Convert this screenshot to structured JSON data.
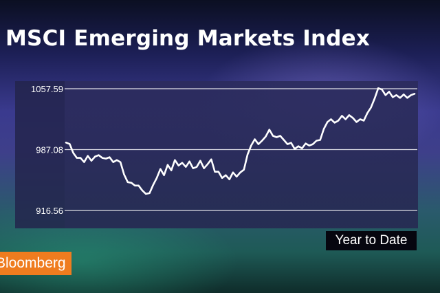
{
  "title": "MSCI Emerging Markets Index",
  "period_label": "Year to Date",
  "brand": "Bloomberg",
  "colors": {
    "line": "#ffffff",
    "gridline": "#ffffff",
    "chart_bg": "#2b2b59",
    "brand": "#ef7c1f"
  },
  "chart_data": {
    "type": "line",
    "title": "MSCI Emerging Markets Index",
    "xlabel": "Year to Date",
    "ylabel": "",
    "ylim": [
      916.56,
      1057.59
    ],
    "yticks": [
      {
        "value": 1057.59,
        "label": "1057.59"
      },
      {
        "value": 987.08,
        "label": "987.08"
      },
      {
        "value": 916.56,
        "label": "916.56"
      }
    ],
    "grid": true,
    "series": [
      {
        "values": [
          995.2,
          993.6,
          983.2,
          977.4,
          977.4,
          972.6,
          979.8,
          974.2,
          979,
          980.6,
          977.4,
          976.6,
          978.2,
          972.6,
          975,
          972.6,
          958.2,
          949.4,
          948.6,
          945.4,
          945.4,
          939.8,
          935.8,
          936.6,
          946.2,
          954.2,
          964.6,
          957.4,
          969.4,
          963,
          975,
          968.6,
          971.8,
          967,
          973.4,
          965.4,
          967,
          974.2,
          965.4,
          970.2,
          975.8,
          961.4,
          961.4,
          954.2,
          957.4,
          952.6,
          960.6,
          955.8,
          960.6,
          963.8,
          981.4,
          991.8,
          999,
          993.4,
          997.4,
          1002.2,
          1010.2,
          1003,
          1001.4,
          1003,
          998.2,
          993.4,
          995,
          987.8,
          991,
          988.6,
          994.2,
          991.8,
          993.4,
          997.4,
          998.2,
          1011,
          1019,
          1022.2,
          1018.2,
          1020.6,
          1026.2,
          1022.2,
          1027,
          1023.8,
          1019,
          1022.2,
          1020.6,
          1029.4,
          1035.8,
          1046.2,
          1058.2,
          1056.6,
          1050.2,
          1054.2,
          1047.8,
          1050.2,
          1047,
          1051,
          1047,
          1050.2,
          1051.8
        ]
      }
    ]
  }
}
